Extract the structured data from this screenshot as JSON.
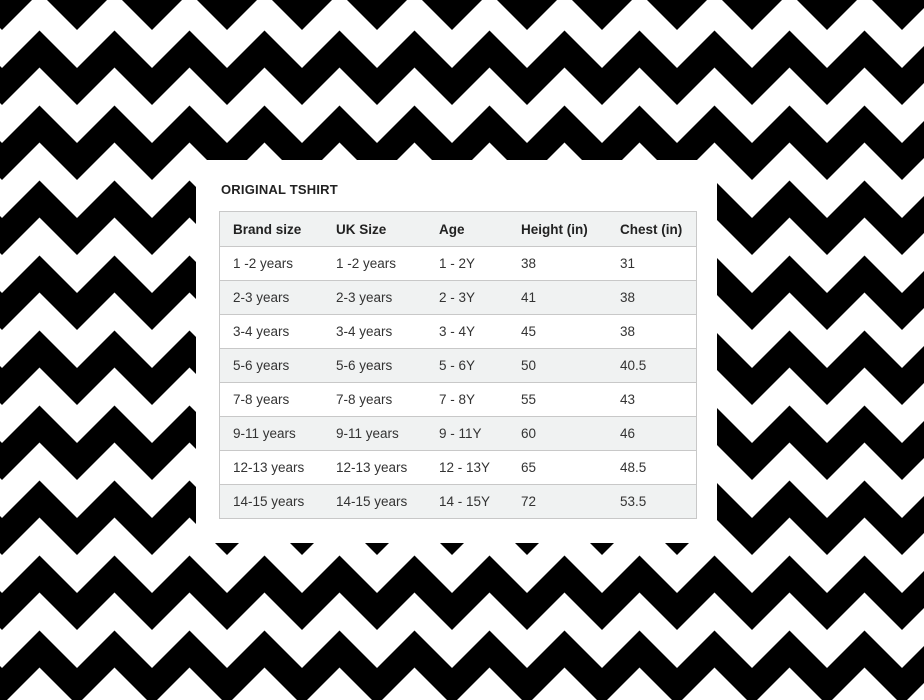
{
  "colors": {
    "pattern_dark": "#000000",
    "pattern_light": "#ffffff",
    "header_bg": "#f0f2f2",
    "border": "#c8c8c8"
  },
  "title": "ORIGINAL TSHIRT",
  "table": {
    "headers": [
      "Brand size",
      "UK Size",
      "Age",
      "Height (in)",
      "Chest (in)"
    ],
    "rows": [
      [
        "1 -2 years",
        "1 -2 years",
        "1 - 2Y",
        "38",
        "31"
      ],
      [
        "2-3 years",
        "2-3 years",
        "2 - 3Y",
        "41",
        "38"
      ],
      [
        "3-4 years",
        "3-4 years",
        "3 - 4Y",
        "45",
        "38"
      ],
      [
        "5-6 years",
        "5-6 years",
        "5 - 6Y",
        "50",
        "40.5"
      ],
      [
        "7-8 years",
        "7-8 years",
        "7 - 8Y",
        "55",
        "43"
      ],
      [
        "9-11 years",
        "9-11 years",
        "9 - 11Y",
        "60",
        "46"
      ],
      [
        "12-13 years",
        "12-13 years",
        "12 - 13Y",
        "65",
        "48.5"
      ],
      [
        "14-15 years",
        "14-15 years",
        "14 - 15Y",
        "72",
        "53.5"
      ]
    ]
  }
}
